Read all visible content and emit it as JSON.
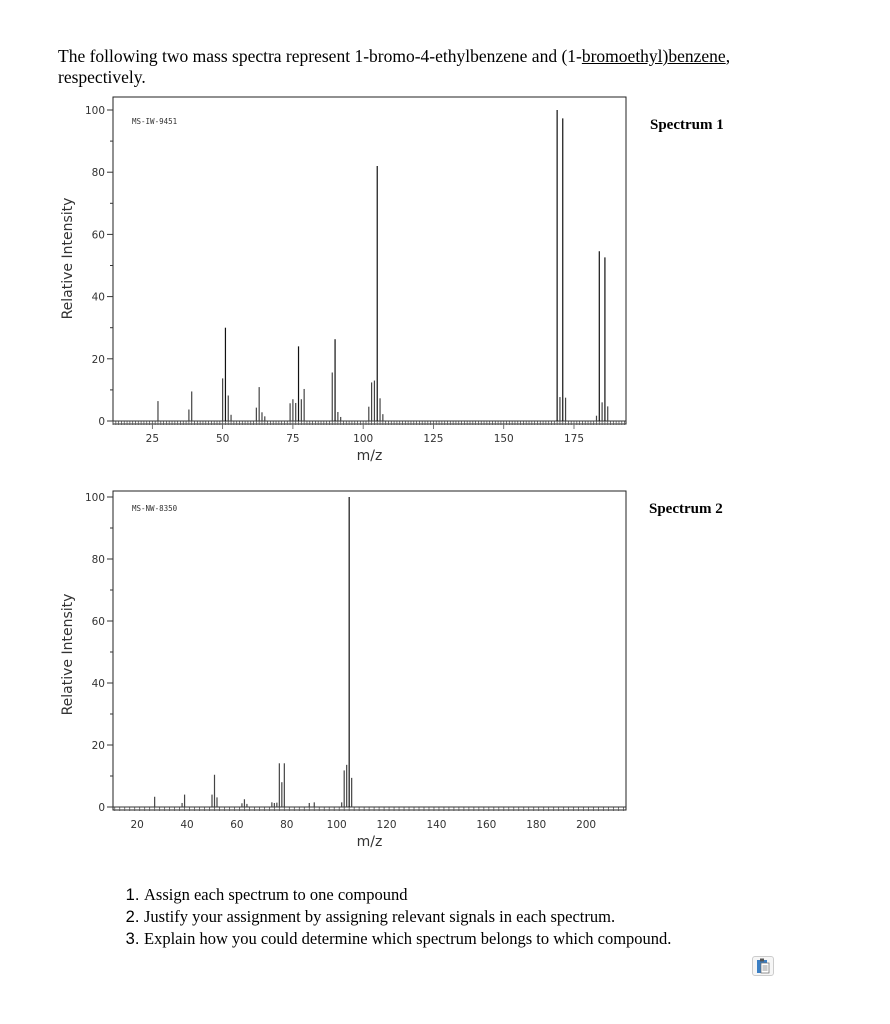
{
  "intro": {
    "text_before": "The following two mass spectra represent 1-bromo-4-ethylbenzene and (1-",
    "underlined": "bromoethyl)benzene",
    "text_after": ",",
    "line2": "respectively."
  },
  "chart_data": [
    {
      "type": "bar",
      "label": "Spectrum 1",
      "code": "MS-IW-9451",
      "xlabel": "m/z",
      "ylabel": "Relative Intensity",
      "xlim": [
        11,
        193.5
      ],
      "ylim": [
        0,
        100
      ],
      "xticks": [
        25,
        50,
        75,
        100,
        125,
        150,
        175
      ],
      "yticks": [
        0,
        20,
        40,
        60,
        80,
        100
      ],
      "grid": false,
      "peaks": [
        [
          27,
          6.4
        ],
        [
          38,
          3.7
        ],
        [
          39,
          9.5
        ],
        [
          50,
          13.7
        ],
        [
          51,
          30
        ],
        [
          52,
          8.2
        ],
        [
          53,
          2
        ],
        [
          62,
          4.3
        ],
        [
          63,
          10.9
        ],
        [
          64,
          2.8
        ],
        [
          65,
          1.5
        ],
        [
          74,
          5.7
        ],
        [
          75,
          7
        ],
        [
          76,
          5.8
        ],
        [
          77,
          24
        ],
        [
          78,
          7
        ],
        [
          79,
          10.3
        ],
        [
          89,
          15.6
        ],
        [
          90,
          26.3
        ],
        [
          91,
          2.9
        ],
        [
          92,
          1.3
        ],
        [
          102,
          4.6
        ],
        [
          103,
          12.4
        ],
        [
          104,
          13
        ],
        [
          105,
          82
        ],
        [
          106,
          7.3
        ],
        [
          107,
          2.2
        ],
        [
          169,
          100
        ],
        [
          170,
          7.7
        ],
        [
          171,
          97.3
        ],
        [
          172,
          7.5
        ],
        [
          183,
          1.7
        ],
        [
          184,
          54.6
        ],
        [
          185,
          6
        ],
        [
          186,
          52.6
        ],
        [
          187,
          4.7
        ]
      ]
    },
    {
      "type": "bar",
      "label": "Spectrum 2",
      "code": "MS-NW-8350",
      "xlabel": "m/z",
      "ylabel": "Relative Intensity",
      "xlim": [
        10.3,
        216
      ],
      "ylim": [
        0,
        100
      ],
      "xticks": [
        20,
        40,
        60,
        80,
        100,
        120,
        140,
        160,
        180,
        200
      ],
      "yticks": [
        0,
        20,
        40,
        60,
        80,
        100
      ],
      "grid": false,
      "peaks": [
        [
          27,
          3.3
        ],
        [
          38,
          1.3
        ],
        [
          39,
          4
        ],
        [
          50,
          4
        ],
        [
          51,
          10.4
        ],
        [
          52,
          3.1
        ],
        [
          62,
          1.2
        ],
        [
          63,
          2.5
        ],
        [
          64,
          1
        ],
        [
          74,
          1.5
        ],
        [
          75,
          1.3
        ],
        [
          76,
          1.4
        ],
        [
          77,
          14.1
        ],
        [
          78,
          8
        ],
        [
          79,
          14.1
        ],
        [
          89,
          1.3
        ],
        [
          91,
          1.5
        ],
        [
          102,
          1.5
        ],
        [
          103,
          11.8
        ],
        [
          104,
          13.6
        ],
        [
          105,
          100
        ],
        [
          106,
          9.4
        ]
      ]
    }
  ],
  "questions": [
    "Assign each spectrum to one compound",
    "Justify your assignment by assigning relevant signals in each spectrum.",
    "Explain how you could determine which spectrum belongs to which compound."
  ],
  "icons": {
    "corner": "clipboard-icon"
  }
}
